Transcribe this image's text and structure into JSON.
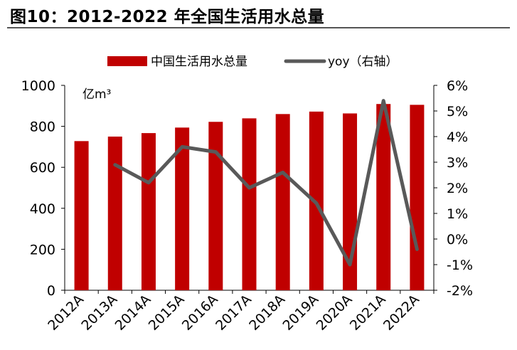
{
  "figure": {
    "title": "图10：2012-2022 年全国生活用水总量"
  },
  "chart_data": {
    "type": "bar",
    "categories": [
      "2012A",
      "2013A",
      "2014A",
      "2015A",
      "2016A",
      "2017A",
      "2018A",
      "2019A",
      "2020A",
      "2021A",
      "2022A"
    ],
    "series": [
      {
        "name": "中国生活用水总量",
        "type": "bar",
        "axis": "left",
        "color": "#c00000",
        "values": [
          728,
          750,
          767,
          794,
          822,
          839,
          860,
          872,
          863,
          909,
          905
        ]
      },
      {
        "name": "yoy（右轴）",
        "type": "line",
        "axis": "right",
        "color": "#595959",
        "unit": "%",
        "values": [
          null,
          2.9,
          2.2,
          3.6,
          3.4,
          2.0,
          2.6,
          1.4,
          -1.0,
          5.4,
          -0.4
        ]
      }
    ],
    "y_left": {
      "unit_label": "亿m³",
      "ylim": [
        0,
        1000
      ],
      "ticks": [
        "0",
        "200",
        "400",
        "600",
        "800",
        "1000"
      ]
    },
    "y_right": {
      "ylim": [
        -2,
        6
      ],
      "ticks": [
        "-2%",
        "-1%",
        "0%",
        "1%",
        "2%",
        "3%",
        "4%",
        "5%",
        "6%"
      ]
    },
    "legend_position": "top-center",
    "grid": false
  }
}
